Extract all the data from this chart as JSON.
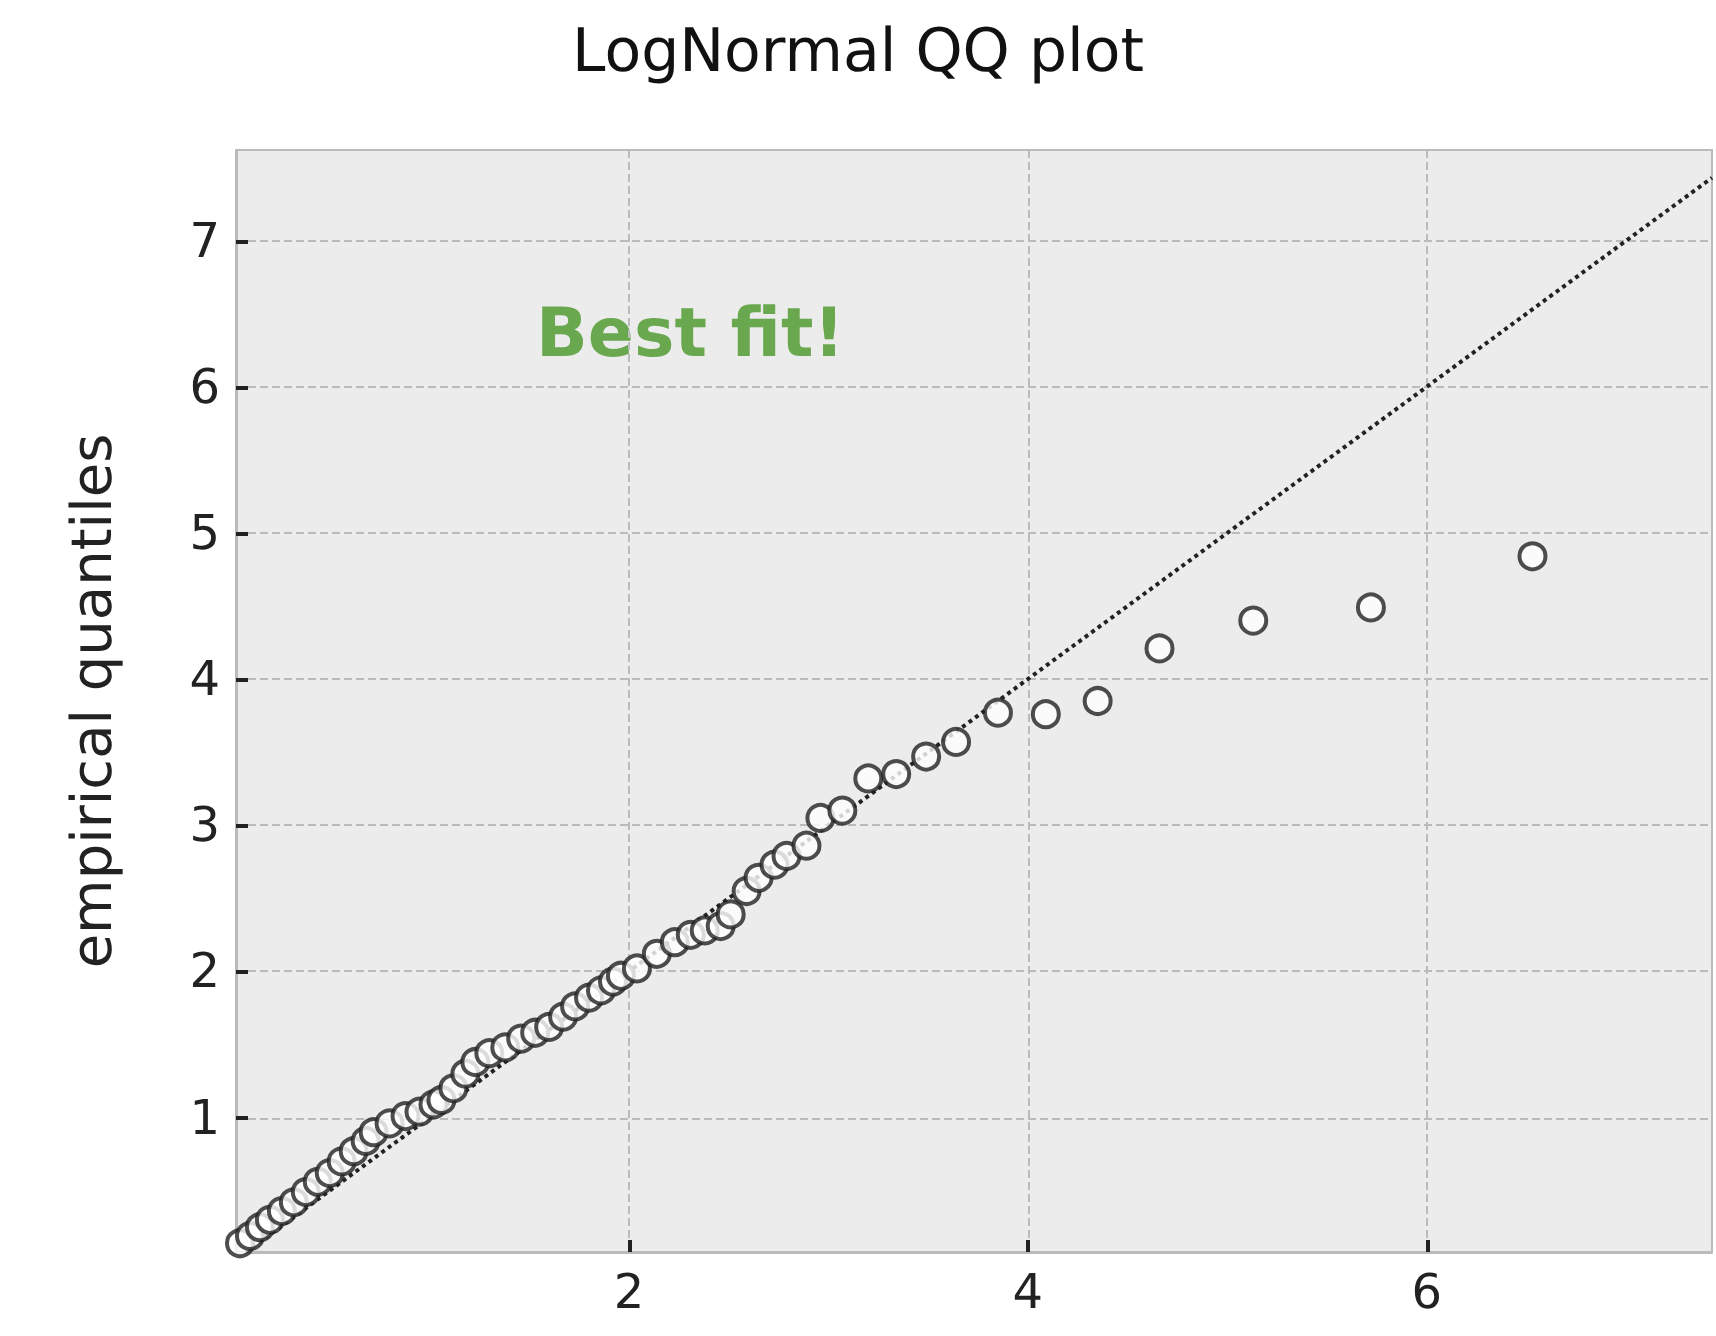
{
  "chart_data": {
    "type": "scatter",
    "title": "LogNormal QQ plot",
    "ylabel": "empirical quantiles",
    "annotations": [
      "Best fit!"
    ],
    "xlim": [
      0.03,
      7.43
    ],
    "ylim": [
      0.08,
      7.62
    ],
    "xticks": [
      2,
      4,
      6
    ],
    "yticks": [
      1,
      2,
      3,
      4,
      5,
      6,
      7
    ],
    "grid": true,
    "series": [
      {
        "color": "#222222",
        "marker": "circle",
        "x": [
          0.05,
          0.1,
          0.15,
          0.2,
          0.26,
          0.32,
          0.38,
          0.44,
          0.5,
          0.56,
          0.62,
          0.68,
          0.72,
          0.8,
          0.88,
          0.95,
          1.02,
          1.06,
          1.12,
          1.18,
          1.23,
          1.3,
          1.38,
          1.46,
          1.53,
          1.6,
          1.67,
          1.73,
          1.8,
          1.86,
          1.92,
          1.96,
          2.04,
          2.14,
          2.23,
          2.31,
          2.38,
          2.46,
          2.51,
          2.59,
          2.65,
          2.73,
          2.79,
          2.89,
          2.96,
          3.07,
          3.2,
          3.34,
          3.49,
          3.64,
          3.85,
          4.09,
          4.35,
          4.66,
          5.13,
          5.72,
          6.53
        ],
        "values": [
          0.14,
          0.19,
          0.25,
          0.3,
          0.36,
          0.42,
          0.49,
          0.56,
          0.62,
          0.7,
          0.77,
          0.84,
          0.9,
          0.96,
          1.01,
          1.04,
          1.09,
          1.12,
          1.2,
          1.3,
          1.38,
          1.44,
          1.48,
          1.54,
          1.58,
          1.62,
          1.69,
          1.76,
          1.82,
          1.87,
          1.93,
          1.97,
          2.02,
          2.12,
          2.2,
          2.25,
          2.28,
          2.31,
          2.39,
          2.55,
          2.64,
          2.73,
          2.79,
          2.86,
          3.05,
          3.1,
          3.32,
          3.35,
          3.47,
          3.57,
          3.77,
          3.76,
          3.85,
          4.21,
          4.4,
          4.49,
          4.84
        ]
      },
      {
        "type": "line",
        "color": "#222222",
        "line_style": "dotted",
        "marker": "none",
        "x": [
          0.08,
          7.43
        ],
        "values": [
          0.08,
          7.43
        ]
      }
    ]
  }
}
